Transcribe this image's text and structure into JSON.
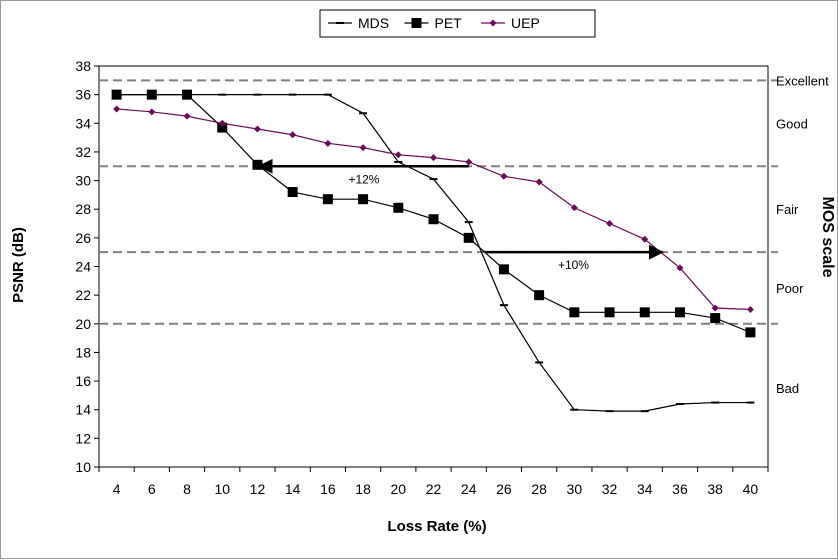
{
  "chart_data": {
    "type": "line",
    "xlabel": "Loss Rate (%)",
    "ylabel": "PSNR (dB)",
    "secondary_label": "MOS scale",
    "x": [
      4,
      6,
      8,
      10,
      12,
      14,
      16,
      18,
      20,
      22,
      24,
      26,
      28,
      30,
      32,
      34,
      36,
      38,
      40
    ],
    "x_ticks": [
      "4",
      "6",
      "8",
      "10",
      "12",
      "14",
      "16",
      "18",
      "20",
      "22",
      "24",
      "26",
      "28",
      "30",
      "32",
      "34",
      "36",
      "38",
      "40"
    ],
    "ylim": [
      10,
      38
    ],
    "y_ticks": [
      "10",
      "12",
      "14",
      "16",
      "18",
      "20",
      "22",
      "24",
      "26",
      "28",
      "30",
      "32",
      "34",
      "36",
      "38"
    ],
    "legend_position": "top-center",
    "grid": false,
    "series": [
      {
        "name": "MDS",
        "marker": "dash",
        "color": "#000000",
        "values": [
          [
            4,
            36.0
          ],
          [
            6,
            36.0
          ],
          [
            8,
            36.0
          ],
          [
            10,
            36.0
          ],
          [
            12,
            36.0
          ],
          [
            14,
            36.0
          ],
          [
            16,
            36.0
          ],
          [
            18,
            34.7
          ],
          [
            20,
            31.3
          ],
          [
            22,
            30.1
          ],
          [
            24,
            27.1
          ],
          [
            26,
            21.3
          ],
          [
            28,
            17.3
          ],
          [
            30,
            14.0
          ],
          [
            32,
            13.9
          ],
          [
            34,
            13.9
          ],
          [
            36,
            14.4
          ],
          [
            38,
            14.5
          ],
          [
            40,
            14.5
          ]
        ]
      },
      {
        "name": "PET",
        "marker": "square",
        "color": "#000000",
        "values": [
          [
            4,
            36.0
          ],
          [
            6,
            36.0
          ],
          [
            8,
            36.0
          ],
          [
            10,
            33.7
          ],
          [
            12,
            31.1
          ],
          [
            14,
            29.2
          ],
          [
            16,
            28.7
          ],
          [
            18,
            28.7
          ],
          [
            20,
            28.1
          ],
          [
            22,
            27.3
          ],
          [
            24,
            26.0
          ],
          [
            26,
            23.8
          ],
          [
            28,
            22.0
          ],
          [
            30,
            20.8
          ],
          [
            32,
            20.8
          ],
          [
            34,
            20.8
          ],
          [
            36,
            20.8
          ],
          [
            38,
            20.4
          ],
          [
            40,
            19.4
          ]
        ]
      },
      {
        "name": "UEP",
        "marker": "diamond",
        "color": "#6b0a5a",
        "values": [
          [
            4,
            35.0
          ],
          [
            6,
            34.8
          ],
          [
            8,
            34.5
          ],
          [
            10,
            34.0
          ],
          [
            12,
            33.6
          ],
          [
            14,
            33.2
          ],
          [
            16,
            32.6
          ],
          [
            18,
            32.3
          ],
          [
            20,
            31.8
          ],
          [
            22,
            31.6
          ],
          [
            24,
            31.3
          ],
          [
            26,
            30.3
          ],
          [
            28,
            29.9
          ],
          [
            30,
            28.1
          ],
          [
            32,
            27.0
          ],
          [
            34,
            25.9
          ],
          [
            36,
            23.9
          ],
          [
            38,
            21.1
          ],
          [
            40,
            21.0
          ]
        ]
      }
    ],
    "reference_lines": [
      {
        "y": 37.0,
        "label": "Excellent",
        "style": "dashed"
      },
      {
        "y": 31.0,
        "label": "",
        "style": "dashed"
      },
      {
        "y": 25.0,
        "label": "",
        "style": "dashed"
      },
      {
        "y": 20.0,
        "label": "",
        "style": "dashed"
      }
    ],
    "mos_labels": [
      {
        "label": "Excellent",
        "y": 37.0
      },
      {
        "label": "Good",
        "y": 34.0
      },
      {
        "label": "Fair",
        "y": 28.0
      },
      {
        "label": "Poor",
        "y": 22.5
      },
      {
        "label": "Bad",
        "y": 15.5
      }
    ],
    "annotations": [
      {
        "text": "+12%",
        "x_from": 24.0,
        "x_to": 12.1,
        "y": 31.0
      },
      {
        "text": "+10%",
        "x_from": 24.9,
        "x_to": 35.0,
        "y": 25.0
      }
    ]
  }
}
